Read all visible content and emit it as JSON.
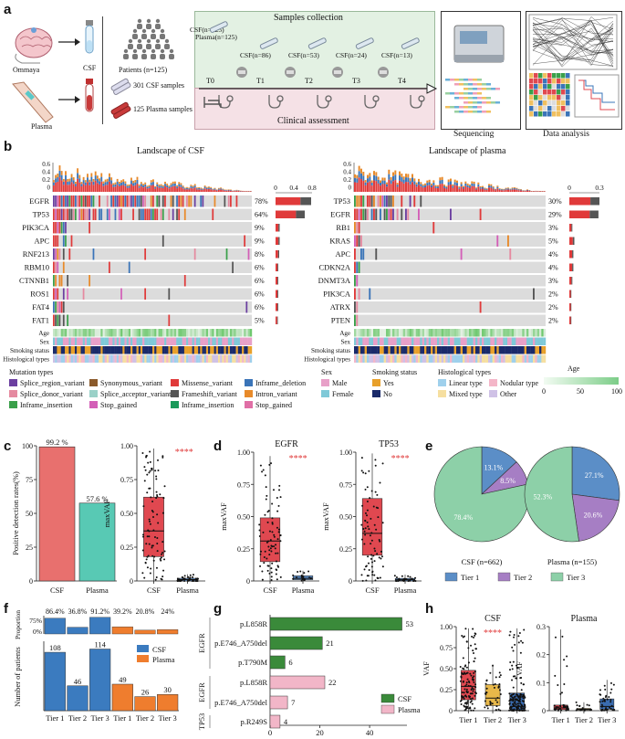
{
  "panel_a": {
    "letter": "a",
    "ommaya": "Ommaya",
    "csf": "CSF",
    "plasma": "Plasma",
    "patients": "Patients (n=125)",
    "csf_samples": "301 CSF samples",
    "plasma_samples": "125 Plasma samples",
    "samples_collection": "Samples collection",
    "clinical_assessment": "Clinical assessment",
    "sequencing": "Sequencing",
    "data_analysis": "Data analysis",
    "timepoints": [
      "T0",
      "T1",
      "T2",
      "T3",
      "T4"
    ],
    "collection_labels": [
      "CSF(n=125)",
      "CSF(n=86)",
      "CSF(n=53)",
      "CSF(n=24)",
      "CSF(n=13)"
    ],
    "plasma_t0": "Plasma(n=125)",
    "colors": {
      "collection_bg": "#e3f1e3",
      "clinical_bg": "#f5e1e6"
    }
  },
  "panel_b": {
    "letter": "b",
    "csf_title": "Landscape of CSF",
    "plasma_title": "Landscape of plasma",
    "csf_yticks": [
      "0.6",
      "0.4",
      "0.2",
      "0"
    ],
    "plasma_yticks": [
      "0.6",
      "0.4",
      "0.2",
      "0"
    ],
    "csf_top_axis": [
      "0",
      "0.4",
      "0.8"
    ],
    "plasma_top_axis": [
      "0",
      "0.3"
    ],
    "csf_genes": [
      {
        "gene": "EGFR",
        "pct": "78%"
      },
      {
        "gene": "TP53",
        "pct": "64%"
      },
      {
        "gene": "PIK3CA",
        "pct": "9%"
      },
      {
        "gene": "APC",
        "pct": "9%"
      },
      {
        "gene": "RNF213",
        "pct": "8%"
      },
      {
        "gene": "RBM10",
        "pct": "6%"
      },
      {
        "gene": "CTNNB1",
        "pct": "6%"
      },
      {
        "gene": "ROS1",
        "pct": "6%"
      },
      {
        "gene": "FAT4",
        "pct": "6%"
      },
      {
        "gene": "FAT1",
        "pct": "5%"
      }
    ],
    "plasma_genes": [
      {
        "gene": "TP53",
        "pct": "30%"
      },
      {
        "gene": "EGFR",
        "pct": "29%"
      },
      {
        "gene": "RB1",
        "pct": "3%"
      },
      {
        "gene": "KRAS",
        "pct": "5%"
      },
      {
        "gene": "APC",
        "pct": "4%"
      },
      {
        "gene": "CDKN2A",
        "pct": "4%"
      },
      {
        "gene": "DNMT3A",
        "pct": "3%"
      },
      {
        "gene": "PIK3CA",
        "pct": "2%"
      },
      {
        "gene": "ATRX",
        "pct": "2%"
      },
      {
        "gene": "PTEN",
        "pct": "2%"
      }
    ],
    "clinical_tracks": [
      "Age",
      "Sex",
      "Smoking status",
      "Histological types"
    ],
    "legend": {
      "mutation_title": "Mutation types",
      "mutation_types": [
        {
          "label": "Splice_region_variant",
          "color": "#6b3fa0"
        },
        {
          "label": "Synonymous_variant",
          "color": "#8b5a2b"
        },
        {
          "label": "Missense_variant",
          "color": "#e03a3a"
        },
        {
          "label": "Inframe_deletion",
          "color": "#3a74b8"
        },
        {
          "label": "Splice_donor_variant",
          "color": "#e58aa0"
        },
        {
          "label": "Splice_acceptor_variant",
          "color": "#9ad1c8"
        },
        {
          "label": "Frameshift_variant",
          "color": "#555555"
        },
        {
          "label": "Intron_variant",
          "color": "#e88a2a"
        },
        {
          "label": "Inframe_insertion",
          "color": "#3aa04a"
        },
        {
          "label": "Stop_gained",
          "color": "#d35fb7"
        },
        {
          "label": "Inframe_insertion",
          "color": "#1a9a5a"
        },
        {
          "label": "Stop_gained",
          "color": "#e06fa6"
        }
      ],
      "sex_title": "Sex",
      "sex": [
        {
          "label": "Male",
          "color": "#e8a0c8"
        },
        {
          "label": "Female",
          "color": "#7fc9d8"
        }
      ],
      "smoking_title": "Smoking status",
      "smoking": [
        {
          "label": "Yes",
          "color": "#e8a02a"
        },
        {
          "label": "No",
          "color": "#1a2a6a"
        }
      ],
      "hist_title": "Histological types",
      "hist": [
        {
          "label": "Linear type",
          "color": "#9fd0ec"
        },
        {
          "label": "Nodular type",
          "color": "#f4b6c8"
        },
        {
          "label": "Mixed type",
          "color": "#f6dfa0"
        },
        {
          "label": "Other",
          "color": "#cfc1e6"
        }
      ],
      "age_title": "Age",
      "age_ticks": [
        "0",
        "50",
        "100"
      ]
    }
  },
  "chart_data": [
    {
      "panel": "c1",
      "type": "bar",
      "categories": [
        "CSF",
        "Plasma"
      ],
      "values": [
        99.2,
        57.6
      ],
      "data_labels": [
        "99.2 %",
        "57.6 %"
      ],
      "ylabel": "Positive detection rates(%)",
      "ylim": [
        0,
        100
      ],
      "yticks": [
        "0",
        "25",
        "50",
        "75",
        "100"
      ],
      "colors": [
        "#e8706e",
        "#58c9b4"
      ]
    },
    {
      "panel": "c2",
      "type": "box",
      "ylabel": "maxVAF",
      "categories": [
        "CSF",
        "Plasma"
      ],
      "ylim": [
        0,
        1
      ],
      "yticks": [
        "0",
        "0.25",
        "0.50",
        "0.75",
        "1.00"
      ],
      "boxes": [
        {
          "q1": 0.18,
          "median": 0.37,
          "q3": 0.62,
          "whislo": 0.0,
          "whishi": 0.98,
          "color": "#e04850"
        },
        {
          "q1": 0.0,
          "median": 0.01,
          "q3": 0.02,
          "whislo": 0.0,
          "whishi": 0.05,
          "color": "#5a8cc8"
        }
      ],
      "significance": "****"
    },
    {
      "panel": "d1",
      "type": "box",
      "title": "EGFR",
      "ylabel": "maxVAF",
      "categories": [
        "CSF",
        "Plasma"
      ],
      "ylim": [
        0,
        1
      ],
      "yticks": [
        "0",
        "0.25",
        "0.50",
        "0.75",
        "1.00"
      ],
      "boxes": [
        {
          "q1": 0.15,
          "median": 0.31,
          "q3": 0.49,
          "whislo": 0.0,
          "whishi": 0.97,
          "color": "#e04850"
        },
        {
          "q1": 0.01,
          "median": 0.02,
          "q3": 0.04,
          "whislo": 0.0,
          "whishi": 0.08,
          "color": "#5a8cc8"
        }
      ],
      "significance": "****"
    },
    {
      "panel": "d2",
      "type": "box",
      "title": "TP53",
      "ylabel": "maxVAF",
      "categories": [
        "CSF",
        "Plasma"
      ],
      "ylim": [
        0,
        1
      ],
      "yticks": [
        "0",
        "0.25",
        "0.50",
        "0.75",
        "1.00"
      ],
      "boxes": [
        {
          "q1": 0.2,
          "median": 0.37,
          "q3": 0.64,
          "whislo": 0.0,
          "whishi": 0.99,
          "color": "#e04850"
        },
        {
          "q1": 0.0,
          "median": 0.01,
          "q3": 0.02,
          "whislo": 0.0,
          "whishi": 0.05,
          "color": "#5a8cc8"
        }
      ],
      "significance": "****"
    },
    {
      "panel": "e1",
      "type": "pie",
      "caption": "CSF (n=662)",
      "slices": [
        {
          "label": "Tier 1",
          "value": 13.1
        },
        {
          "label": "Tier 2",
          "value": 8.5
        },
        {
          "label": "Tier 3",
          "value": 78.4
        }
      ],
      "data_labels": [
        "13.1%",
        "8.5%",
        "78.4%"
      ]
    },
    {
      "panel": "e2",
      "type": "pie",
      "caption": "Plasma (n=155)",
      "slices": [
        {
          "label": "Tier 1",
          "value": 27.1
        },
        {
          "label": "Tier 2",
          "value": 20.6
        },
        {
          "label": "Tier 3",
          "value": 52.3
        }
      ],
      "data_labels": [
        "27.1%",
        "20.6%",
        "52.3%"
      ]
    },
    {
      "panel": "f",
      "type": "bar",
      "categories": [
        "Tier 1",
        "Tier 2",
        "Tier 3",
        "Tier 1",
        "Tier 2",
        "Tier 3"
      ],
      "series": [
        {
          "name": "CSF",
          "values": [
            108,
            46,
            114,
            null,
            null,
            null
          ]
        },
        {
          "name": "Plasma",
          "values": [
            null,
            null,
            null,
            49,
            26,
            30
          ]
        }
      ],
      "proportion": [
        86.4,
        36.8,
        91.2,
        39.2,
        20.8,
        24
      ],
      "proportion_labels": [
        "86.4%",
        "36.8%",
        "91.2%",
        "39.2%",
        "20.8%",
        "24%"
      ],
      "count_labels": [
        "108",
        "46",
        "114",
        "49",
        "26",
        "30"
      ],
      "ylabel": "Number of patients",
      "ylabel_top": "Proportion",
      "prop_ticks": [
        "75%",
        "0%"
      ],
      "ylim": [
        0,
        125
      ]
    },
    {
      "panel": "g",
      "type": "bar",
      "orientation": "horizontal",
      "categories": [
        "p.L858R",
        "p.E746_A750del",
        "p.T790M",
        "p.L858R",
        "p.E746_A750del",
        "p.R249S"
      ],
      "genes": [
        "EGFR",
        "EGFR",
        "EGFR",
        "EGFR",
        "EGFR",
        "TP53"
      ],
      "series": [
        {
          "name": "CSF",
          "values": [
            53,
            21,
            6,
            null,
            null,
            null
          ]
        },
        {
          "name": "Plasma",
          "values": [
            null,
            null,
            null,
            22,
            7,
            4
          ]
        }
      ],
      "xlabel": "Number of patients",
      "xticks": [
        "0",
        "20",
        "40"
      ],
      "xlim": [
        0,
        55
      ]
    },
    {
      "panel": "h1",
      "type": "box",
      "title": "CSF",
      "ylabel": "VAF",
      "categories": [
        "Tier 1",
        "Tier 2",
        "Tier 3"
      ],
      "ylim": [
        0,
        1
      ],
      "yticks": [
        "0",
        "0.25",
        "0.50",
        "0.75",
        "1.00"
      ],
      "boxes": [
        {
          "q1": 0.13,
          "median": 0.29,
          "q3": 0.48,
          "whislo": 0.0,
          "whishi": 0.98,
          "color": "#e04850"
        },
        {
          "q1": 0.06,
          "median": 0.15,
          "q3": 0.31,
          "whislo": 0.0,
          "whishi": 0.55,
          "color": "#e8b84a"
        },
        {
          "q1": 0.01,
          "median": 0.05,
          "q3": 0.21,
          "whislo": 0.0,
          "whishi": 0.98,
          "color": "#3a6cb0"
        }
      ],
      "significance": "****"
    },
    {
      "panel": "h2",
      "type": "box",
      "title": "Plasma",
      "ylabel": "VAF",
      "categories": [
        "Tier 1",
        "Tier 2",
        "Tier 3"
      ],
      "ylim": [
        0,
        0.3
      ],
      "yticks": [
        "0",
        "0.1",
        "0.2",
        "0.3"
      ],
      "boxes": [
        {
          "q1": 0.004,
          "median": 0.01,
          "q3": 0.02,
          "whislo": 0.0,
          "whishi": 0.29,
          "color": "#e04850"
        },
        {
          "q1": 0.002,
          "median": 0.005,
          "q3": 0.008,
          "whislo": 0.0,
          "whishi": 0.03,
          "color": "#e8b84a"
        },
        {
          "q1": 0.005,
          "median": 0.015,
          "q3": 0.042,
          "whislo": 0.0,
          "whishi": 0.11,
          "color": "#3a6cb0"
        }
      ]
    }
  ],
  "legends": {
    "tier": [
      {
        "label": "Tier 1",
        "color": "#5b8ec7"
      },
      {
        "label": "Tier 2",
        "color": "#a67ec4"
      },
      {
        "label": "Tier 3",
        "color": "#8dd0a8"
      }
    ],
    "f": [
      {
        "label": "CSF",
        "color": "#3b7bbf"
      },
      {
        "label": "Plasma",
        "color": "#ef7d2e"
      }
    ],
    "g": [
      {
        "label": "CSF",
        "color": "#3a8a3a"
      },
      {
        "label": "Plasma",
        "color": "#f2b6c8"
      }
    ]
  },
  "letters": {
    "c": "c",
    "d": "d",
    "e": "e",
    "f": "f",
    "g": "g",
    "h": "h"
  }
}
